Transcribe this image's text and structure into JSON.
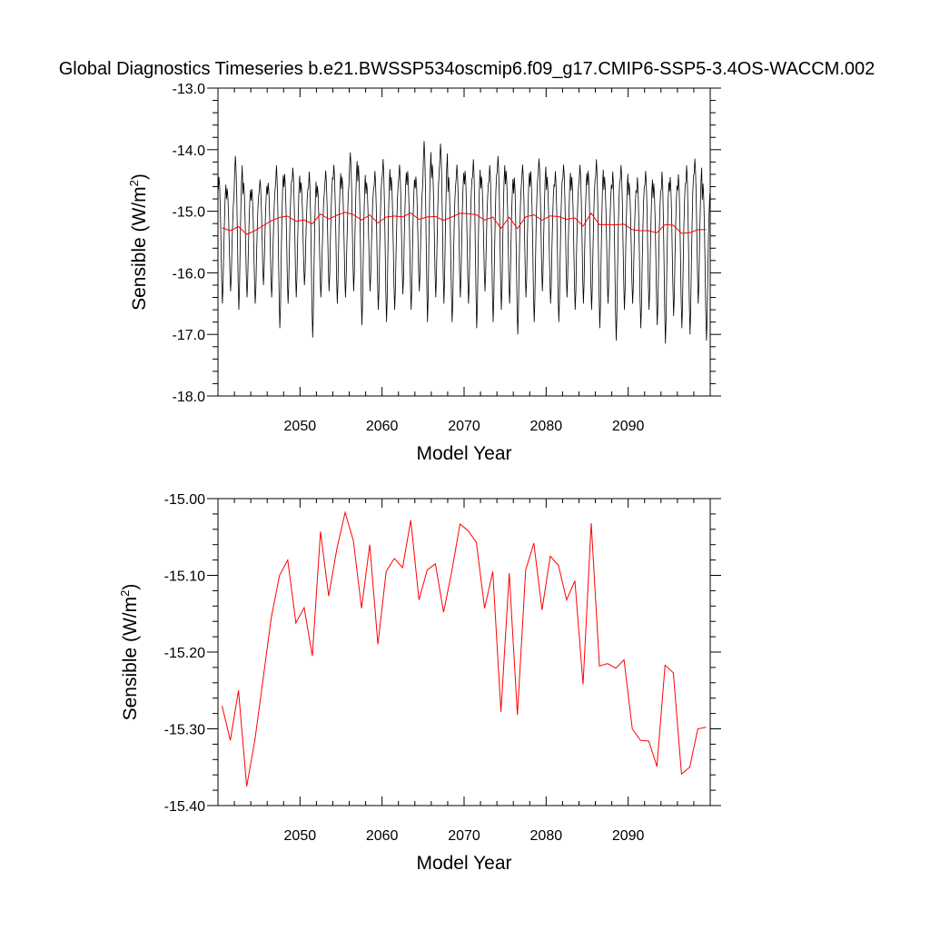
{
  "title": "Global Diagnostics Timeseries b.e21.BWSSP534oscmip6.f09_g17.CMIP6-SSP5-3.4OS-WACCM.002",
  "colors": {
    "monthly": "#000000",
    "annual": "#ff0000",
    "axis": "#000000"
  },
  "chart_data": [
    {
      "type": "line",
      "title": "",
      "xlabel": "Model Year",
      "ylabel": "Sensible (W/m²)",
      "ylabel_base": "Sensible (W/m",
      "ylabel_sup": "2",
      "ylabel_close": ")",
      "xlim": [
        2040,
        2100
      ],
      "ylim": [
        -18.0,
        -13.0
      ],
      "xticks": [
        2050,
        2060,
        2070,
        2080,
        2090
      ],
      "xtick_labels": [
        "2050",
        "2060",
        "2070",
        "2080",
        "2090"
      ],
      "yticks": [
        -18.0,
        -17.0,
        -16.0,
        -15.0,
        -14.0,
        -13.0
      ],
      "ytick_labels": [
        "-18.0",
        "-17.0",
        "-16.0",
        "-15.0",
        "-14.0",
        "-13.0"
      ],
      "grid": false,
      "monthly_series": {
        "color": "#000000",
        "x_start": 2040.0,
        "months_per_year": 12,
        "annual_min": [
          -16.5,
          -16.3,
          -16.6,
          -16.4,
          -16.5,
          -16.2,
          -16.4,
          -16.9,
          -16.5,
          -16.4,
          -16.2,
          -17.05,
          -16.4,
          -16.3,
          -16.5,
          -16.4,
          -16.3,
          -16.85,
          -16.3,
          -16.6,
          -16.8,
          -16.6,
          -16.35,
          -16.6,
          -16.3,
          -16.8,
          -16.4,
          -16.5,
          -16.8,
          -16.4,
          -16.5,
          -16.9,
          -16.3,
          -16.8,
          -16.6,
          -16.5,
          -17.0,
          -16.4,
          -16.8,
          -16.3,
          -16.5,
          -16.8,
          -16.4,
          -16.6,
          -16.5,
          -16.6,
          -16.9,
          -16.5,
          -17.1,
          -16.6,
          -16.5,
          -16.9,
          -16.6,
          -16.85,
          -17.15,
          -16.7,
          -16.9,
          -17.0,
          -16.5,
          -17.1
        ],
        "annual_max": [
          -14.4,
          -14.6,
          -14.05,
          -14.5,
          -14.6,
          -14.45,
          -14.5,
          -14.2,
          -14.35,
          -14.25,
          -14.5,
          -14.3,
          -14.55,
          -14.3,
          -14.2,
          -14.4,
          -14.0,
          -14.2,
          -14.5,
          -14.3,
          -14.1,
          -14.4,
          -14.2,
          -14.3,
          -14.4,
          -13.8,
          -14.2,
          -13.85,
          -14.4,
          -14.2,
          -14.3,
          -14.1,
          -14.4,
          -14.2,
          -14.05,
          -14.3,
          -14.4,
          -14.2,
          -14.3,
          -14.1,
          -14.4,
          -14.3,
          -14.2,
          -14.4,
          -14.2,
          -14.3,
          -14.1,
          -14.4,
          -14.3,
          -14.2,
          -14.5,
          -14.4,
          -14.3,
          -14.5,
          -14.3,
          -14.4,
          -14.35,
          -14.2,
          -14.1,
          -14.5
        ]
      },
      "annual_series": {
        "name": "",
        "color": "#ff0000",
        "ref": "annual_means"
      }
    },
    {
      "type": "line",
      "title": "",
      "xlabel": "Model Year",
      "ylabel": "Sensible (W/m²)",
      "ylabel_base": "Sensible (W/m",
      "ylabel_sup": "2",
      "ylabel_close": ")",
      "xlim": [
        2040,
        2100
      ],
      "ylim": [
        -15.4,
        -15.0
      ],
      "xticks": [
        2050,
        2060,
        2070,
        2080,
        2090
      ],
      "xtick_labels": [
        "2050",
        "2060",
        "2070",
        "2080",
        "2090"
      ],
      "yticks": [
        -15.4,
        -15.3,
        -15.2,
        -15.1,
        -15.0
      ],
      "ytick_labels": [
        "-15.40",
        "-15.30",
        "-15.20",
        "-15.10",
        "-15.00"
      ],
      "grid": false,
      "series": [
        {
          "name": "",
          "color": "#ff0000",
          "x": [
            2040.5,
            2041.5,
            2042.5,
            2043.5,
            2044.5,
            2045.5,
            2046.5,
            2047.5,
            2048.5,
            2049.5,
            2050.5,
            2051.5,
            2052.5,
            2053.5,
            2054.5,
            2055.5,
            2056.5,
            2057.5,
            2058.5,
            2059.5,
            2060.5,
            2061.5,
            2062.5,
            2063.5,
            2064.5,
            2065.5,
            2066.5,
            2067.5,
            2068.5,
            2069.5,
            2070.5,
            2071.5,
            2072.5,
            2073.5,
            2074.5,
            2075.5,
            2076.5,
            2077.5,
            2078.5,
            2079.5,
            2080.5,
            2081.5,
            2082.5,
            2083.5,
            2084.5,
            2085.5,
            2086.5,
            2087.5,
            2088.5,
            2089.5,
            2090.5,
            2091.5,
            2092.5,
            2093.5,
            2094.5,
            2095.5,
            2096.5,
            2097.5,
            2098.5,
            2099.5
          ],
          "values": [
            -15.27,
            -15.315,
            -15.25,
            -15.375,
            -15.315,
            -15.235,
            -15.155,
            -15.1,
            -15.08,
            -15.162,
            -15.142,
            -15.205,
            -15.043,
            -15.127,
            -15.065,
            -15.018,
            -15.055,
            -15.143,
            -15.06,
            -15.19,
            -15.095,
            -15.078,
            -15.09,
            -15.028,
            -15.132,
            -15.093,
            -15.085,
            -15.148,
            -15.095,
            -15.033,
            -15.042,
            -15.057,
            -15.143,
            -15.095,
            -15.278,
            -15.097,
            -15.282,
            -15.093,
            -15.058,
            -15.145,
            -15.075,
            -15.087,
            -15.132,
            -15.107,
            -15.242,
            -15.032,
            -15.218,
            -15.215,
            -15.221,
            -15.21,
            -15.3,
            -15.315,
            -15.316,
            -15.349,
            -15.217,
            -15.227,
            -15.359,
            -15.35,
            -15.3,
            -15.298
          ]
        }
      ]
    }
  ]
}
